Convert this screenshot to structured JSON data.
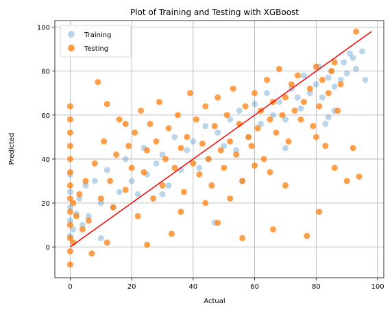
{
  "chart_data": {
    "type": "scatter",
    "title": "Plot of Training and Testing with XGBoost",
    "xlabel": "Actual",
    "ylabel": "Predicted",
    "xlim": [
      -5,
      102
    ],
    "ylim": [
      -14,
      103
    ],
    "xticks": [
      0,
      20,
      40,
      60,
      80,
      100
    ],
    "yticks": [
      0,
      20,
      40,
      60,
      80,
      100
    ],
    "grid": true,
    "legend_position": "top-left",
    "series": [
      {
        "name": "Training",
        "color": "#1f77b4",
        "opacity": 0.3,
        "points": [
          [
            0,
            5
          ],
          [
            0,
            12
          ],
          [
            0,
            18
          ],
          [
            0,
            25
          ],
          [
            0,
            33
          ],
          [
            1,
            8
          ],
          [
            2,
            15
          ],
          [
            3,
            22
          ],
          [
            4,
            10
          ],
          [
            5,
            28
          ],
          [
            6,
            14
          ],
          [
            8,
            30
          ],
          [
            10,
            20
          ],
          [
            12,
            35
          ],
          [
            14,
            18
          ],
          [
            16,
            25
          ],
          [
            18,
            40
          ],
          [
            20,
            30
          ],
          [
            22,
            24
          ],
          [
            24,
            45
          ],
          [
            25,
            33
          ],
          [
            28,
            38
          ],
          [
            30,
            42
          ],
          [
            32,
            28
          ],
          [
            34,
            50
          ],
          [
            36,
            35
          ],
          [
            38,
            44
          ],
          [
            40,
            48
          ],
          [
            42,
            36
          ],
          [
            44,
            55
          ],
          [
            45,
            40
          ],
          [
            48,
            52
          ],
          [
            50,
            46
          ],
          [
            52,
            58
          ],
          [
            54,
            44
          ],
          [
            55,
            62
          ],
          [
            58,
            50
          ],
          [
            60,
            65
          ],
          [
            62,
            56
          ],
          [
            64,
            70
          ],
          [
            66,
            60
          ],
          [
            68,
            66
          ],
          [
            70,
            58
          ],
          [
            72,
            72
          ],
          [
            74,
            68
          ],
          [
            75,
            63
          ],
          [
            76,
            78
          ],
          [
            78,
            70
          ],
          [
            80,
            74
          ],
          [
            81,
            82
          ],
          [
            82,
            68
          ],
          [
            84,
            77
          ],
          [
            85,
            80
          ],
          [
            86,
            73
          ],
          [
            88,
            76
          ],
          [
            89,
            84
          ],
          [
            90,
            79
          ],
          [
            92,
            86
          ],
          [
            93,
            81
          ],
          [
            95,
            89
          ],
          [
            96,
            76
          ],
          [
            86,
            62
          ],
          [
            84,
            59
          ],
          [
            83,
            56
          ],
          [
            47,
            11
          ],
          [
            10,
            4
          ],
          [
            30,
            24
          ],
          [
            56,
            30
          ],
          [
            70,
            45
          ],
          [
            91,
            88
          ]
        ]
      },
      {
        "name": "Testing",
        "color": "#ff7f0e",
        "opacity": 0.75,
        "points": [
          [
            0,
            64
          ],
          [
            0,
            58
          ],
          [
            0,
            52
          ],
          [
            0,
            46
          ],
          [
            0,
            40
          ],
          [
            0,
            34
          ],
          [
            0,
            28
          ],
          [
            0,
            22
          ],
          [
            0,
            16
          ],
          [
            0,
            10
          ],
          [
            0,
            4
          ],
          [
            0,
            -2
          ],
          [
            0,
            -8
          ],
          [
            1,
            20
          ],
          [
            1,
            2
          ],
          [
            2,
            14
          ],
          [
            3,
            24
          ],
          [
            4,
            8
          ],
          [
            5,
            30
          ],
          [
            6,
            12
          ],
          [
            7,
            -3
          ],
          [
            8,
            38
          ],
          [
            9,
            75
          ],
          [
            10,
            22
          ],
          [
            11,
            48
          ],
          [
            12,
            65
          ],
          [
            13,
            30
          ],
          [
            14,
            18
          ],
          [
            15,
            42
          ],
          [
            16,
            58
          ],
          [
            18,
            26
          ],
          [
            19,
            46
          ],
          [
            20,
            36
          ],
          [
            21,
            52
          ],
          [
            22,
            14
          ],
          [
            23,
            62
          ],
          [
            24,
            34
          ],
          [
            25,
            44
          ],
          [
            26,
            56
          ],
          [
            27,
            22
          ],
          [
            28,
            48
          ],
          [
            29,
            66
          ],
          [
            30,
            28
          ],
          [
            31,
            40
          ],
          [
            32,
            54
          ],
          [
            33,
            6
          ],
          [
            34,
            36
          ],
          [
            35,
            60
          ],
          [
            36,
            45
          ],
          [
            37,
            25
          ],
          [
            38,
            50
          ],
          [
            39,
            70
          ],
          [
            40,
            38
          ],
          [
            41,
            58
          ],
          [
            42,
            33
          ],
          [
            43,
            47
          ],
          [
            44,
            64
          ],
          [
            45,
            40
          ],
          [
            46,
            28
          ],
          [
            47,
            55
          ],
          [
            48,
            68
          ],
          [
            49,
            44
          ],
          [
            50,
            36
          ],
          [
            51,
            60
          ],
          [
            52,
            48
          ],
          [
            53,
            72
          ],
          [
            54,
            42
          ],
          [
            55,
            56
          ],
          [
            56,
            30
          ],
          [
            57,
            64
          ],
          [
            58,
            50
          ],
          [
            59,
            46
          ],
          [
            60,
            70
          ],
          [
            61,
            54
          ],
          [
            62,
            62
          ],
          [
            63,
            40
          ],
          [
            64,
            76
          ],
          [
            65,
            58
          ],
          [
            66,
            66
          ],
          [
            67,
            52
          ],
          [
            68,
            81
          ],
          [
            69,
            60
          ],
          [
            70,
            68
          ],
          [
            71,
            48
          ],
          [
            72,
            74
          ],
          [
            73,
            62
          ],
          [
            74,
            78
          ],
          [
            75,
            58
          ],
          [
            76,
            66
          ],
          [
            77,
            5
          ],
          [
            78,
            72
          ],
          [
            79,
            55
          ],
          [
            80,
            82
          ],
          [
            81,
            64
          ],
          [
            82,
            76
          ],
          [
            83,
            46
          ],
          [
            84,
            70
          ],
          [
            85,
            80
          ],
          [
            86,
            36
          ],
          [
            87,
            62
          ],
          [
            88,
            74
          ],
          [
            90,
            30
          ],
          [
            92,
            45
          ],
          [
            94,
            32
          ],
          [
            93,
            98
          ],
          [
            66,
            8
          ],
          [
            56,
            4
          ],
          [
            81,
            16
          ],
          [
            48,
            11
          ],
          [
            18,
            56
          ],
          [
            12,
            2
          ],
          [
            25,
            1
          ],
          [
            60,
            37
          ],
          [
            44,
            20
          ],
          [
            36,
            16
          ],
          [
            70,
            28
          ],
          [
            80,
            50
          ],
          [
            86,
            84
          ],
          [
            65,
            34
          ],
          [
            52,
            22
          ]
        ]
      }
    ],
    "reference_line": {
      "color": "#ff0000",
      "points": [
        [
          0,
          0
        ],
        [
          98,
          98
        ]
      ]
    }
  }
}
